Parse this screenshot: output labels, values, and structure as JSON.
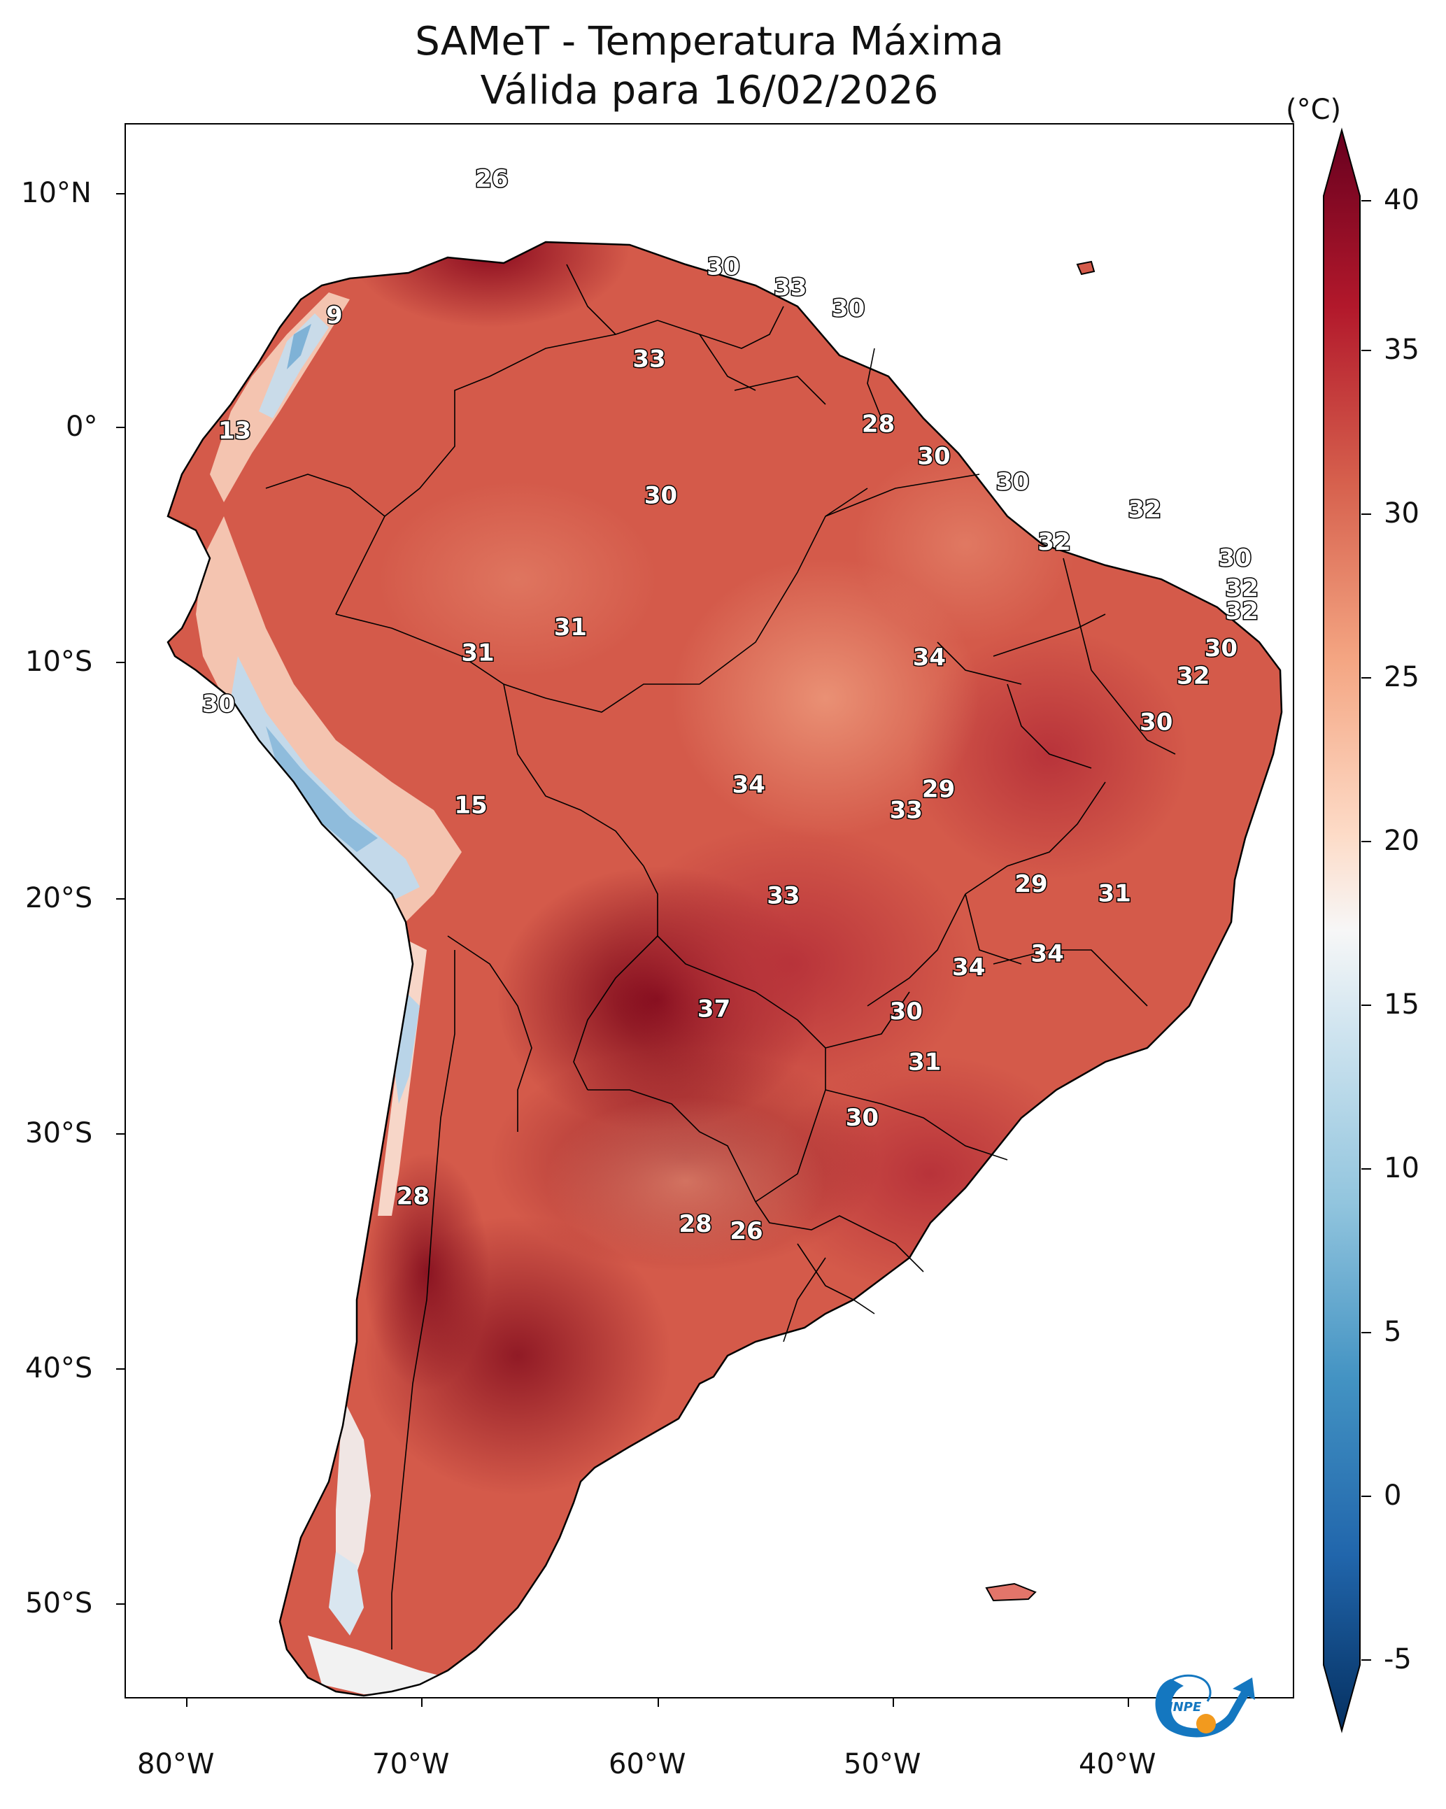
{
  "title": {
    "line1": "SAMeT - Temperatura Máxima",
    "line2": "Válida para 16/02/2026"
  },
  "axes": {
    "lon_labels": [
      "80°W",
      "70°W",
      "60°W",
      "50°W",
      "40°W"
    ],
    "lat_labels": [
      "10°N",
      "0°",
      "10°S",
      "20°S",
      "30°S",
      "40°S",
      "50°S"
    ]
  },
  "colorbar": {
    "unit": "(°C)",
    "ticks": [
      "40",
      "35",
      "30",
      "25",
      "20",
      "15",
      "10",
      "5",
      "0",
      "-5"
    ],
    "min": -5,
    "max": 40
  },
  "logo": {
    "text": "INPE"
  },
  "map_labels": [
    {
      "lon": -67.2,
      "lat": 10.6,
      "value": "26"
    },
    {
      "lon": -74.0,
      "lat": 4.7,
      "value": "9"
    },
    {
      "lon": -78.3,
      "lat": -0.3,
      "value": "13"
    },
    {
      "lon": -57.2,
      "lat": 6.8,
      "value": "30"
    },
    {
      "lon": -54.3,
      "lat": 5.9,
      "value": "33"
    },
    {
      "lon": -51.8,
      "lat": 5.0,
      "value": "30"
    },
    {
      "lon": -60.4,
      "lat": 2.8,
      "value": "33"
    },
    {
      "lon": -50.5,
      "lat": 0.0,
      "value": "28"
    },
    {
      "lon": -48.1,
      "lat": -1.4,
      "value": "30"
    },
    {
      "lon": -44.7,
      "lat": -2.5,
      "value": "30"
    },
    {
      "lon": -59.9,
      "lat": -3.1,
      "value": "30"
    },
    {
      "lon": -39.0,
      "lat": -3.7,
      "value": "32"
    },
    {
      "lon": -42.9,
      "lat": -5.1,
      "value": "32"
    },
    {
      "lon": -35.1,
      "lat": -5.8,
      "value": "30"
    },
    {
      "lon": -34.8,
      "lat": -7.1,
      "value": "32"
    },
    {
      "lon": -34.8,
      "lat": -8.1,
      "value": "32"
    },
    {
      "lon": -63.8,
      "lat": -8.8,
      "value": "31"
    },
    {
      "lon": -67.8,
      "lat": -9.9,
      "value": "31"
    },
    {
      "lon": -48.3,
      "lat": -10.1,
      "value": "34"
    },
    {
      "lon": -35.7,
      "lat": -9.7,
      "value": "30"
    },
    {
      "lon": -36.9,
      "lat": -10.9,
      "value": "32"
    },
    {
      "lon": -79.0,
      "lat": -12.1,
      "value": "30"
    },
    {
      "lon": -38.5,
      "lat": -12.9,
      "value": "30"
    },
    {
      "lon": -56.1,
      "lat": -15.6,
      "value": "34"
    },
    {
      "lon": -47.9,
      "lat": -15.8,
      "value": "29"
    },
    {
      "lon": -49.3,
      "lat": -16.7,
      "value": "33"
    },
    {
      "lon": -68.1,
      "lat": -16.5,
      "value": "15"
    },
    {
      "lon": -43.9,
      "lat": -19.9,
      "value": "29"
    },
    {
      "lon": -40.3,
      "lat": -20.3,
      "value": "31"
    },
    {
      "lon": -54.6,
      "lat": -20.4,
      "value": "33"
    },
    {
      "lon": -46.6,
      "lat": -23.5,
      "value": "34"
    },
    {
      "lon": -43.2,
      "lat": -22.9,
      "value": "34"
    },
    {
      "lon": -57.6,
      "lat": -25.3,
      "value": "37"
    },
    {
      "lon": -49.3,
      "lat": -25.4,
      "value": "30"
    },
    {
      "lon": -48.5,
      "lat": -27.6,
      "value": "31"
    },
    {
      "lon": -51.2,
      "lat": -30.0,
      "value": "30"
    },
    {
      "lon": -70.6,
      "lat": -33.4,
      "value": "28"
    },
    {
      "lon": -58.4,
      "lat": -34.6,
      "value": "28"
    },
    {
      "lon": -56.2,
      "lat": -34.9,
      "value": "26"
    }
  ]
}
